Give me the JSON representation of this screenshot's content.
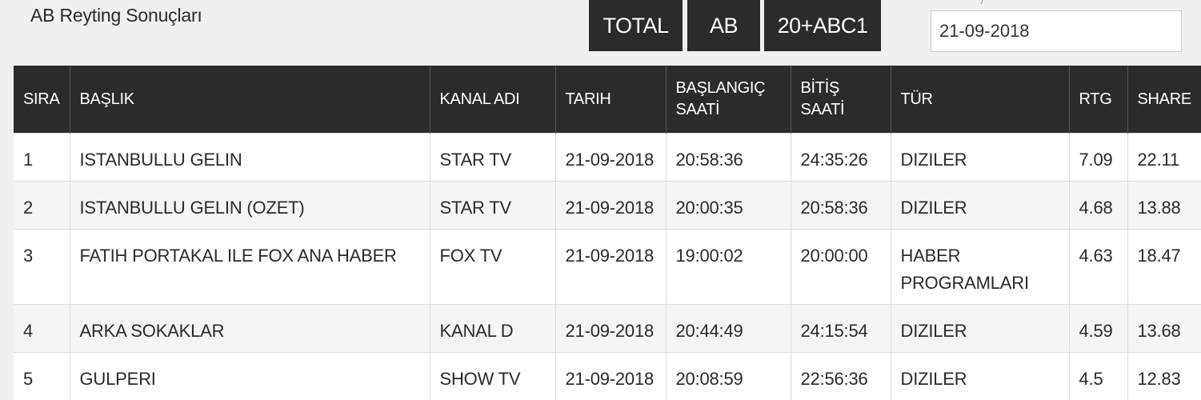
{
  "page": {
    "title": "AB Reyting Sonuçları",
    "date_caption": "/"
  },
  "filters": {
    "total_label": "TOTAL",
    "ab_label": "AB",
    "abc_label": "20+ABC1"
  },
  "date_field": {
    "value": "21-09-2018"
  },
  "table": {
    "headers": {
      "sira": "SIRA",
      "baslik": "BAŞLIK",
      "kanal": "KANAL ADI",
      "tarih": "TARIH",
      "baslangic": "BAŞLANGIÇ SAATİ",
      "bitis": "BİTİŞ SAATİ",
      "tur": "TÜR",
      "rtg": "RTG",
      "share": "SHARE"
    },
    "rows": [
      {
        "sira": "1",
        "baslik": "ISTANBULLU GELIN",
        "kanal": "STAR TV",
        "tarih": "21-09-2018",
        "baslangic": "20:58:36",
        "bitis": "24:35:26",
        "tur": "DIZILER",
        "rtg": "7.09",
        "share": "22.11"
      },
      {
        "sira": "2",
        "baslik": "ISTANBULLU GELIN (OZET)",
        "kanal": "STAR TV",
        "tarih": "21-09-2018",
        "baslangic": "20:00:35",
        "bitis": "20:58:36",
        "tur": "DIZILER",
        "rtg": "4.68",
        "share": "13.88"
      },
      {
        "sira": "3",
        "baslik": "FATIH PORTAKAL ILE FOX ANA HABER",
        "kanal": "FOX TV",
        "tarih": "21-09-2018",
        "baslangic": "19:00:02",
        "bitis": "20:00:00",
        "tur": "HABER PROGRAMLARI",
        "rtg": "4.63",
        "share": "18.47"
      },
      {
        "sira": "4",
        "baslik": "ARKA SOKAKLAR",
        "kanal": "KANAL D",
        "tarih": "21-09-2018",
        "baslangic": "20:44:49",
        "bitis": "24:15:54",
        "tur": "DIZILER",
        "rtg": "4.59",
        "share": "13.68"
      },
      {
        "sira": "5",
        "baslik": "GULPERI",
        "kanal": "SHOW TV",
        "tarih": "21-09-2018",
        "baslangic": "20:08:59",
        "bitis": "22:56:36",
        "tur": "DIZILER",
        "rtg": "4.5",
        "share": "12.83"
      }
    ]
  }
}
